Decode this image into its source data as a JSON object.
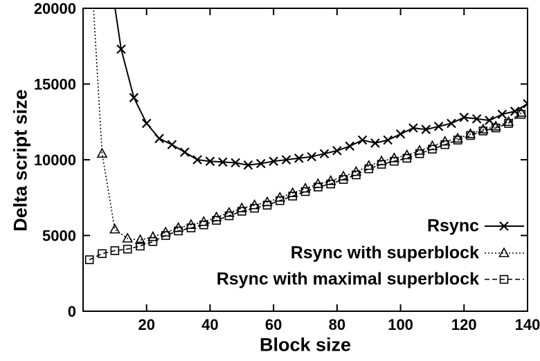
{
  "figure": {
    "background": "#ffffff",
    "foreground": "#000000"
  },
  "chart_data": {
    "type": "line",
    "title": "",
    "xlabel": "Block size",
    "ylabel": "Delta script size",
    "xlim": [
      0,
      140
    ],
    "ylim": [
      0,
      20000
    ],
    "x_ticks": [
      20,
      40,
      60,
      80,
      100,
      120,
      140
    ],
    "y_ticks": [
      0,
      5000,
      10000,
      15000,
      20000
    ],
    "grid": false,
    "legend_position": "bottom-right-inside",
    "series": [
      {
        "name": "Rsync",
        "marker": "cross",
        "line": "solid",
        "color": "#000000",
        "x": [
          9,
          12,
          16,
          20,
          24,
          28,
          32,
          36,
          40,
          44,
          48,
          52,
          56,
          60,
          64,
          68,
          72,
          76,
          80,
          84,
          88,
          92,
          96,
          100,
          104,
          108,
          112,
          116,
          120,
          124,
          128,
          132,
          136,
          140
        ],
        "y": [
          21500,
          17300,
          14100,
          12400,
          11400,
          11000,
          10500,
          10000,
          9900,
          9850,
          9800,
          9650,
          9750,
          9900,
          10000,
          10100,
          10200,
          10400,
          10600,
          10900,
          11300,
          11100,
          11300,
          11700,
          12100,
          12000,
          12200,
          12400,
          12800,
          12700,
          12600,
          13000,
          13200,
          13700
        ]
      },
      {
        "name": "Rsync with superblock",
        "marker": "triangle-open",
        "line": "dotted",
        "color": "#000000",
        "x": [
          3,
          6,
          10,
          14,
          18,
          22,
          26,
          30,
          34,
          38,
          42,
          46,
          50,
          54,
          58,
          62,
          66,
          70,
          74,
          78,
          82,
          86,
          90,
          94,
          98,
          102,
          106,
          110,
          114,
          118,
          122,
          126,
          130,
          134,
          138
        ],
        "y": [
          21000,
          10400,
          5400,
          4800,
          4700,
          4900,
          5200,
          5500,
          5700,
          5900,
          6200,
          6500,
          6800,
          7000,
          7200,
          7500,
          7800,
          8100,
          8400,
          8600,
          8900,
          9200,
          9600,
          9900,
          10100,
          10300,
          10600,
          10900,
          11200,
          11400,
          11700,
          12000,
          12200,
          12500,
          13100
        ]
      },
      {
        "name": "Rsync with maximal superblock",
        "marker": "square-open",
        "line": "dashed",
        "color": "#000000",
        "x": [
          2,
          6,
          10,
          14,
          18,
          22,
          26,
          30,
          34,
          38,
          42,
          46,
          50,
          54,
          58,
          62,
          66,
          70,
          74,
          78,
          82,
          86,
          90,
          94,
          98,
          102,
          106,
          110,
          114,
          118,
          122,
          126,
          130,
          134,
          138
        ],
        "y": [
          3400,
          3800,
          4000,
          4100,
          4300,
          4600,
          5000,
          5300,
          5500,
          5700,
          6000,
          6300,
          6600,
          6800,
          7000,
          7300,
          7600,
          7900,
          8200,
          8400,
          8700,
          9000,
          9400,
          9700,
          9900,
          10100,
          10400,
          10700,
          11000,
          11300,
          11600,
          11900,
          12100,
          12400,
          13000
        ]
      }
    ]
  }
}
